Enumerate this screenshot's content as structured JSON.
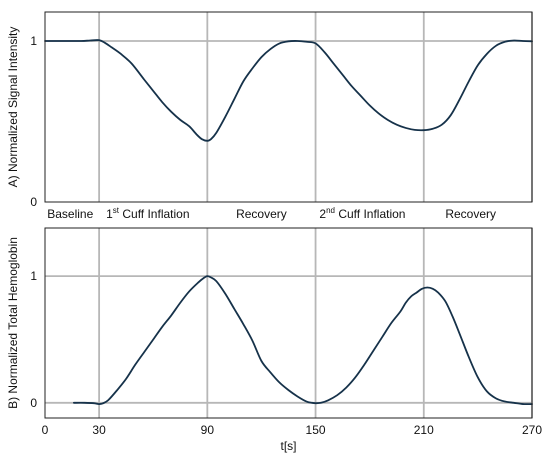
{
  "chart_data": [
    {
      "type": "line",
      "ylabel": "A) Normalized Signal Intensity",
      "xlabel": "",
      "xlim": [
        0,
        270
      ],
      "ylim": [
        0,
        1.18
      ],
      "grid": true,
      "x_gridlines": [
        30,
        90,
        150,
        210,
        270
      ],
      "y_gridlines": [
        1
      ],
      "yticks": [
        0,
        1
      ],
      "ytick_labels": [
        "0",
        "1"
      ],
      "phase_labels": [
        {
          "x": 14,
          "text": "Baseline"
        },
        {
          "x": 57,
          "text": "1",
          "sup": "st",
          "rest": " Cuff Inflation"
        },
        {
          "x": 120,
          "text": "Recovery"
        },
        {
          "x": 176,
          "text": "2",
          "sup": "nd",
          "rest": " Cuff Inflation"
        },
        {
          "x": 236,
          "text": "Recovery"
        }
      ],
      "series": [
        {
          "color": "#16324a",
          "x": [
            0,
            10,
            20,
            25,
            30,
            33,
            37,
            42,
            48,
            55,
            60,
            65,
            70,
            75,
            80,
            84,
            87,
            90,
            92,
            95,
            100,
            105,
            110,
            115,
            120,
            125,
            130,
            135,
            140,
            145,
            150,
            155,
            160,
            165,
            170,
            175,
            180,
            185,
            190,
            195,
            200,
            205,
            210,
            215,
            220,
            225,
            230,
            235,
            240,
            245,
            250,
            255,
            260,
            265,
            270
          ],
          "y": [
            1.0,
            1.0,
            1.0,
            1.003,
            1.005,
            0.99,
            0.96,
            0.92,
            0.86,
            0.76,
            0.69,
            0.62,
            0.56,
            0.51,
            0.47,
            0.42,
            0.39,
            0.38,
            0.39,
            0.43,
            0.53,
            0.64,
            0.75,
            0.83,
            0.9,
            0.95,
            0.985,
            0.998,
            1.0,
            0.995,
            0.985,
            0.93,
            0.86,
            0.79,
            0.72,
            0.66,
            0.6,
            0.55,
            0.51,
            0.48,
            0.46,
            0.448,
            0.446,
            0.455,
            0.48,
            0.54,
            0.64,
            0.75,
            0.85,
            0.92,
            0.97,
            0.995,
            1.003,
            1.0,
            0.998
          ]
        }
      ]
    },
    {
      "type": "line",
      "ylabel": "B) Normalized Total Hemoglobin",
      "xlabel": "t[s]",
      "xlim": [
        0,
        270
      ],
      "ylim": [
        -0.12,
        1.38
      ],
      "grid": true,
      "x_gridlines": [
        30,
        90,
        150,
        210,
        270
      ],
      "y_gridlines": [
        0,
        1
      ],
      "xticks": [
        0,
        30,
        90,
        150,
        210,
        270
      ],
      "xtick_labels": [
        "0",
        "30",
        "90",
        "150",
        "210",
        "270"
      ],
      "yticks": [
        0,
        1
      ],
      "ytick_labels": [
        "0",
        "1"
      ],
      "series": [
        {
          "color": "#16324a",
          "x": [
            16,
            22,
            27,
            30,
            32,
            35,
            40,
            45,
            50,
            55,
            60,
            65,
            70,
            75,
            80,
            85,
            88,
            90,
            92,
            95,
            100,
            105,
            110,
            115,
            120,
            125,
            130,
            135,
            140,
            145,
            148,
            150,
            153,
            157,
            162,
            167,
            172,
            177,
            182,
            187,
            192,
            197,
            200,
            203,
            206,
            209,
            212,
            215,
            218,
            222,
            226,
            230,
            235,
            240,
            245,
            250,
            255,
            260,
            265,
            270
          ],
          "y": [
            0.0,
            0.0,
            -0.003,
            -0.01,
            -0.005,
            0.02,
            0.1,
            0.19,
            0.3,
            0.4,
            0.5,
            0.6,
            0.69,
            0.79,
            0.88,
            0.95,
            0.985,
            1.0,
            0.99,
            0.96,
            0.86,
            0.74,
            0.62,
            0.49,
            0.33,
            0.24,
            0.16,
            0.1,
            0.05,
            0.01,
            0.0,
            -0.003,
            0.0,
            0.02,
            0.06,
            0.12,
            0.2,
            0.3,
            0.41,
            0.52,
            0.63,
            0.72,
            0.79,
            0.84,
            0.87,
            0.9,
            0.91,
            0.9,
            0.87,
            0.8,
            0.68,
            0.54,
            0.36,
            0.2,
            0.09,
            0.035,
            0.01,
            0.0,
            -0.01,
            -0.01
          ]
        }
      ]
    }
  ]
}
